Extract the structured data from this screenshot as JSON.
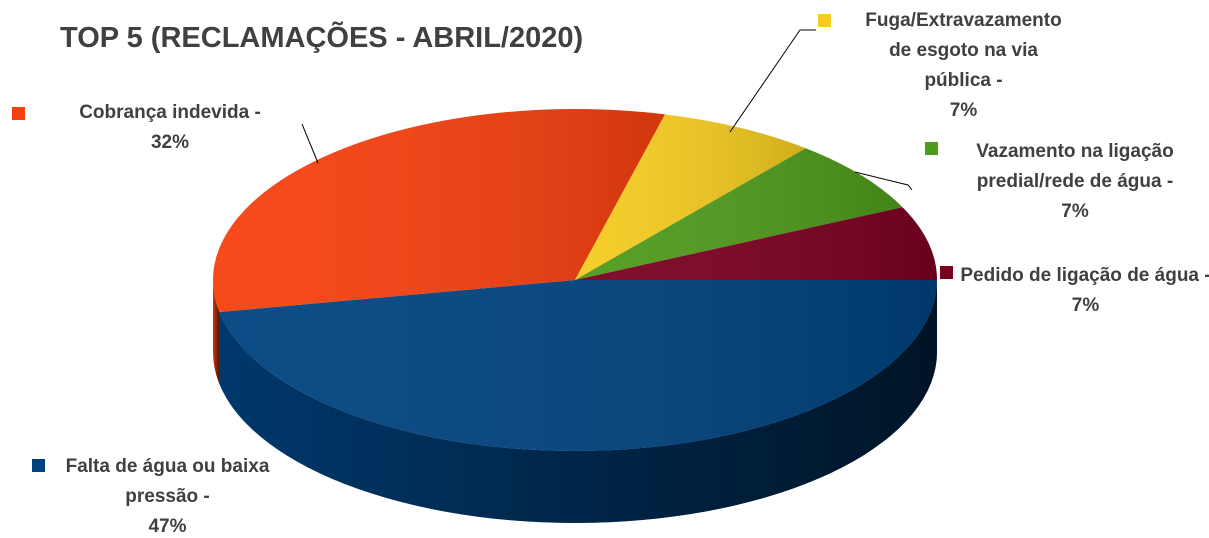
{
  "chart_data": {
    "type": "pie3d",
    "title": "TOP 5 (RECLAMAÇÕES - ABRIL/2020)",
    "categories": [
      "Falta de água ou baixa pressão -",
      "Cobrança indevida -",
      "Fuga/Extravazamento de esgoto na via pública -",
      "Vazamento na ligação predial/rede de água -",
      "Pedido de ligação de água -"
    ],
    "values": [
      47,
      32,
      7,
      7,
      7
    ],
    "value_labels": [
      "47%",
      "32%",
      "7%",
      "7%",
      "7%"
    ],
    "colors": [
      "#00427f",
      "#f7400f",
      "#f5cc1f",
      "#4e9a1b",
      "#7a0020"
    ]
  }
}
